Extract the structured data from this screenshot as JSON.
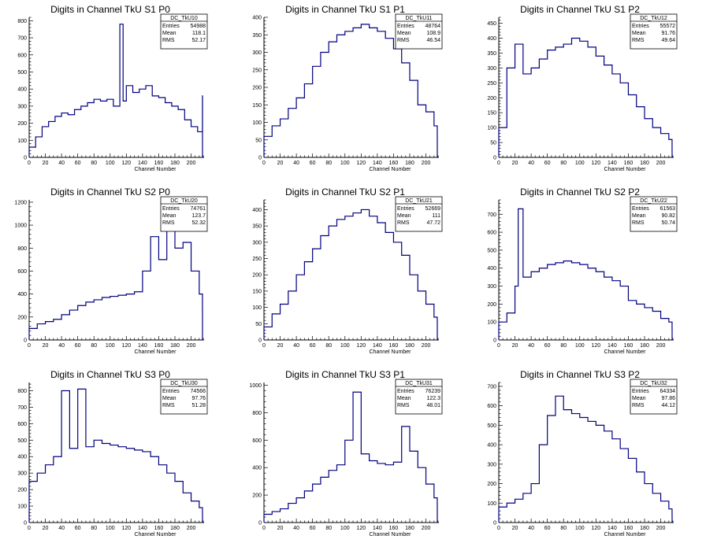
{
  "chart_data": [
    {
      "type": "histogram",
      "title": "Digits in Channel TkU S1 P0",
      "xlabel": "Channel Number",
      "xlim": [
        0,
        216
      ],
      "ylim": [
        0,
        820
      ],
      "xticks": [
        0,
        20,
        40,
        60,
        80,
        100,
        120,
        140,
        160,
        180,
        200
      ],
      "yticks": [
        0,
        100,
        200,
        300,
        400,
        500,
        600,
        700,
        800
      ],
      "stats": {
        "name": "DC_TkU10",
        "entries": "54988",
        "mean": "118.1",
        "rms": "52.17"
      },
      "series": [
        {
          "x": [
            0,
            8,
            16,
            24,
            32,
            40,
            48,
            56,
            64,
            72,
            80,
            88,
            96,
            104,
            112,
            116,
            120,
            128,
            136,
            144,
            152,
            160,
            168,
            176,
            184,
            192,
            200,
            208,
            214
          ],
          "y": [
            60,
            120,
            180,
            210,
            240,
            260,
            250,
            280,
            300,
            320,
            340,
            330,
            340,
            300,
            780,
            330,
            420,
            380,
            400,
            420,
            360,
            350,
            320,
            300,
            280,
            220,
            180,
            150,
            360
          ]
        }
      ]
    },
    {
      "type": "histogram",
      "title": "Digits in Channel TkU S1 P1",
      "xlabel": "Channel Number",
      "xlim": [
        0,
        216
      ],
      "ylim": [
        0,
        400
      ],
      "xticks": [
        0,
        20,
        40,
        60,
        80,
        100,
        120,
        140,
        160,
        180,
        200
      ],
      "yticks": [
        0,
        50,
        100,
        150,
        200,
        250,
        300,
        350,
        400
      ],
      "stats": {
        "name": "DC_TkU11",
        "entries": "48764",
        "mean": "108.9",
        "rms": "46.54"
      },
      "series": [
        {
          "x": [
            0,
            10,
            20,
            30,
            40,
            50,
            60,
            70,
            80,
            90,
            100,
            110,
            120,
            130,
            140,
            150,
            160,
            170,
            180,
            190,
            200,
            210,
            214
          ],
          "y": [
            60,
            90,
            110,
            140,
            170,
            210,
            260,
            300,
            330,
            350,
            360,
            370,
            380,
            370,
            360,
            340,
            310,
            270,
            220,
            150,
            130,
            90,
            60
          ]
        }
      ]
    },
    {
      "type": "histogram",
      "title": "Digits in Channel TkU S1 P2",
      "xlabel": "Channel Number",
      "xlim": [
        0,
        216
      ],
      "ylim": [
        0,
        470
      ],
      "xticks": [
        0,
        20,
        40,
        60,
        80,
        100,
        120,
        140,
        160,
        180,
        200
      ],
      "yticks": [
        0,
        50,
        100,
        150,
        200,
        250,
        300,
        350,
        400,
        450
      ],
      "stats": {
        "name": "DC_TkU12",
        "entries": "55572",
        "mean": "91.76",
        "rms": "49.64"
      },
      "series": [
        {
          "x": [
            0,
            10,
            20,
            30,
            40,
            50,
            60,
            70,
            80,
            90,
            100,
            110,
            120,
            130,
            140,
            150,
            160,
            170,
            180,
            190,
            200,
            210,
            214
          ],
          "y": [
            100,
            300,
            380,
            280,
            300,
            330,
            360,
            370,
            380,
            400,
            390,
            370,
            340,
            310,
            280,
            250,
            210,
            170,
            130,
            100,
            80,
            60,
            20
          ]
        }
      ]
    },
    {
      "type": "histogram",
      "title": "Digits in Channel TkU S2 P0",
      "xlabel": "Channel Number",
      "xlim": [
        0,
        216
      ],
      "ylim": [
        0,
        1220
      ],
      "xticks": [
        0,
        20,
        40,
        60,
        80,
        100,
        120,
        140,
        160,
        180,
        200
      ],
      "yticks": [
        0,
        200,
        400,
        600,
        800,
        1000,
        1200
      ],
      "stats": {
        "name": "DC_TkU20",
        "entries": "74761",
        "mean": "123.7",
        "rms": "52.32"
      },
      "series": [
        {
          "x": [
            0,
            10,
            20,
            30,
            40,
            50,
            60,
            70,
            80,
            90,
            100,
            110,
            120,
            130,
            140,
            150,
            160,
            170,
            180,
            190,
            200,
            210,
            214
          ],
          "y": [
            100,
            140,
            160,
            180,
            220,
            260,
            300,
            330,
            350,
            370,
            380,
            390,
            400,
            420,
            600,
            900,
            700,
            1150,
            800,
            850,
            600,
            400,
            260
          ]
        }
      ]
    },
    {
      "type": "histogram",
      "title": "Digits in Channel TkU S2 P1",
      "xlabel": "Channel Number",
      "xlim": [
        0,
        216
      ],
      "ylim": [
        0,
        430
      ],
      "xticks": [
        0,
        20,
        40,
        60,
        80,
        100,
        120,
        140,
        160,
        180,
        200
      ],
      "yticks": [
        0,
        50,
        100,
        150,
        200,
        250,
        300,
        350,
        400
      ],
      "stats": {
        "name": "DC_TkU21",
        "entries": "52669",
        "mean": "111",
        "rms": "47.72"
      },
      "series": [
        {
          "x": [
            0,
            10,
            20,
            30,
            40,
            50,
            60,
            70,
            80,
            90,
            100,
            110,
            120,
            130,
            140,
            150,
            160,
            170,
            180,
            190,
            200,
            210,
            214
          ],
          "y": [
            40,
            80,
            110,
            150,
            200,
            240,
            280,
            320,
            350,
            370,
            380,
            390,
            400,
            380,
            360,
            330,
            300,
            260,
            200,
            150,
            110,
            70,
            50
          ]
        }
      ]
    },
    {
      "type": "histogram",
      "title": "Digits in Channel TkU S2 P2",
      "xlabel": "Channel Number",
      "xlim": [
        0,
        216
      ],
      "ylim": [
        0,
        780
      ],
      "xticks": [
        0,
        20,
        40,
        60,
        80,
        100,
        120,
        140,
        160,
        180,
        200
      ],
      "yticks": [
        0,
        100,
        200,
        300,
        400,
        500,
        600,
        700
      ],
      "stats": {
        "name": "DC_TkU22",
        "entries": "61563",
        "mean": "90.82",
        "rms": "50.74"
      },
      "series": [
        {
          "x": [
            0,
            10,
            20,
            24,
            30,
            40,
            50,
            60,
            70,
            80,
            90,
            100,
            110,
            120,
            130,
            140,
            150,
            160,
            170,
            180,
            190,
            200,
            210,
            214
          ],
          "y": [
            100,
            150,
            300,
            730,
            350,
            380,
            400,
            420,
            430,
            440,
            430,
            420,
            400,
            380,
            350,
            330,
            300,
            220,
            200,
            180,
            160,
            120,
            100,
            60
          ]
        }
      ]
    },
    {
      "type": "histogram",
      "title": "Digits in Channel TkU S3 P0",
      "xlabel": "Channel Number",
      "xlim": [
        0,
        216
      ],
      "ylim": [
        0,
        850
      ],
      "xticks": [
        0,
        20,
        40,
        60,
        80,
        100,
        120,
        140,
        160,
        180,
        200
      ],
      "yticks": [
        0,
        100,
        200,
        300,
        400,
        500,
        600,
        700,
        800
      ],
      "stats": {
        "name": "DC_TkU30",
        "entries": "74566",
        "mean": "97.76",
        "rms": "51.28"
      },
      "series": [
        {
          "x": [
            0,
            10,
            20,
            30,
            40,
            50,
            60,
            70,
            80,
            90,
            100,
            110,
            120,
            130,
            140,
            150,
            160,
            170,
            180,
            190,
            200,
            210,
            214
          ],
          "y": [
            250,
            300,
            350,
            400,
            800,
            450,
            810,
            460,
            500,
            480,
            470,
            460,
            450,
            440,
            430,
            400,
            350,
            300,
            250,
            180,
            130,
            90,
            50
          ]
        }
      ]
    },
    {
      "type": "histogram",
      "title": "Digits in Channel TkU S3 P1",
      "xlabel": "Channel Number",
      "xlim": [
        0,
        216
      ],
      "ylim": [
        0,
        1020
      ],
      "xticks": [
        0,
        20,
        40,
        60,
        80,
        100,
        120,
        140,
        160,
        180,
        200
      ],
      "yticks": [
        0,
        200,
        400,
        600,
        800,
        1000
      ],
      "stats": {
        "name": "DC_TkU31",
        "entries": "76239",
        "mean": "122.3",
        "rms": "48.01"
      },
      "series": [
        {
          "x": [
            0,
            10,
            20,
            30,
            40,
            50,
            60,
            70,
            80,
            90,
            100,
            110,
            120,
            130,
            140,
            150,
            160,
            170,
            180,
            190,
            200,
            210,
            214
          ],
          "y": [
            60,
            80,
            100,
            140,
            180,
            230,
            280,
            330,
            380,
            420,
            600,
            950,
            500,
            450,
            430,
            420,
            440,
            700,
            520,
            400,
            280,
            180,
            130
          ]
        }
      ]
    },
    {
      "type": "histogram",
      "title": "Digits in Channel TkU S3 P2",
      "xlabel": "Channel Number",
      "xlim": [
        0,
        216
      ],
      "ylim": [
        0,
        720
      ],
      "xticks": [
        0,
        20,
        40,
        60,
        80,
        100,
        120,
        140,
        160,
        180,
        200
      ],
      "yticks": [
        0,
        100,
        200,
        300,
        400,
        500,
        600,
        700
      ],
      "stats": {
        "name": "DC_TkU32",
        "entries": "64334",
        "mean": "97.86",
        "rms": "44.12"
      },
      "series": [
        {
          "x": [
            0,
            10,
            20,
            30,
            40,
            50,
            60,
            70,
            80,
            90,
            100,
            110,
            120,
            130,
            140,
            150,
            160,
            170,
            180,
            190,
            200,
            210,
            214
          ],
          "y": [
            80,
            100,
            120,
            150,
            200,
            400,
            550,
            650,
            580,
            560,
            540,
            520,
            500,
            470,
            430,
            380,
            330,
            260,
            200,
            150,
            110,
            70,
            40
          ]
        }
      ]
    }
  ],
  "labels": {
    "entries": "Entries",
    "mean": "Mean",
    "rms": "RMS"
  },
  "colors": {
    "line": "#000080",
    "axis": "#000000",
    "background": "#ffffff"
  }
}
